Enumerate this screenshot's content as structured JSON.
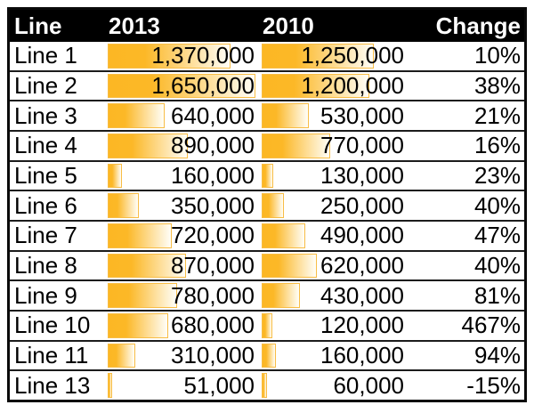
{
  "colors": {
    "header_bg": "#000000",
    "header_text": "#ffffff",
    "bar_fill": "#fcb724",
    "bar_border": "#f8bd45",
    "row_border": "#1c1c1c",
    "outer_border": "#0a0a0a",
    "text": "#000000"
  },
  "table": {
    "columns": [
      "Line",
      "2013",
      "2010",
      "Change"
    ]
  },
  "chart_data": {
    "type": "table",
    "title": "",
    "columns": [
      "Line",
      "2013",
      "2010",
      "Change"
    ],
    "bar_scale_max": 1650000,
    "bar_columns": [
      "2013",
      "2010"
    ],
    "rows": [
      {
        "line": "Line 1",
        "v2013": 1370000,
        "d2013": "1,370,000",
        "v2010": 1250000,
        "d2010": "1,250,000",
        "change": "10%"
      },
      {
        "line": "Line 2",
        "v2013": 1650000,
        "d2013": "1,650,000",
        "v2010": 1200000,
        "d2010": "1,200,000",
        "change": "38%"
      },
      {
        "line": "Line 3",
        "v2013": 640000,
        "d2013": "640,000",
        "v2010": 530000,
        "d2010": "530,000",
        "change": "21%"
      },
      {
        "line": "Line 4",
        "v2013": 890000,
        "d2013": "890,000",
        "v2010": 770000,
        "d2010": "770,000",
        "change": "16%"
      },
      {
        "line": "Line 5",
        "v2013": 160000,
        "d2013": "160,000",
        "v2010": 130000,
        "d2010": "130,000",
        "change": "23%"
      },
      {
        "line": "Line 6",
        "v2013": 350000,
        "d2013": "350,000",
        "v2010": 250000,
        "d2010": "250,000",
        "change": "40%"
      },
      {
        "line": "Line 7",
        "v2013": 720000,
        "d2013": "720,000",
        "v2010": 490000,
        "d2010": "490,000",
        "change": "47%"
      },
      {
        "line": "Line 8",
        "v2013": 870000,
        "d2013": "870,000",
        "v2010": 620000,
        "d2010": "620,000",
        "change": "40%"
      },
      {
        "line": "Line 9",
        "v2013": 780000,
        "d2013": "780,000",
        "v2010": 430000,
        "d2010": "430,000",
        "change": "81%"
      },
      {
        "line": "Line 10",
        "v2013": 680000,
        "d2013": "680,000",
        "v2010": 120000,
        "d2010": "120,000",
        "change": "467%"
      },
      {
        "line": "Line 11",
        "v2013": 310000,
        "d2013": "310,000",
        "v2010": 160000,
        "d2010": "160,000",
        "change": "94%"
      },
      {
        "line": "Line 13",
        "v2013": 51000,
        "d2013": "51,000",
        "v2010": 60000,
        "d2010": "60,000",
        "change": "-15%"
      }
    ]
  }
}
